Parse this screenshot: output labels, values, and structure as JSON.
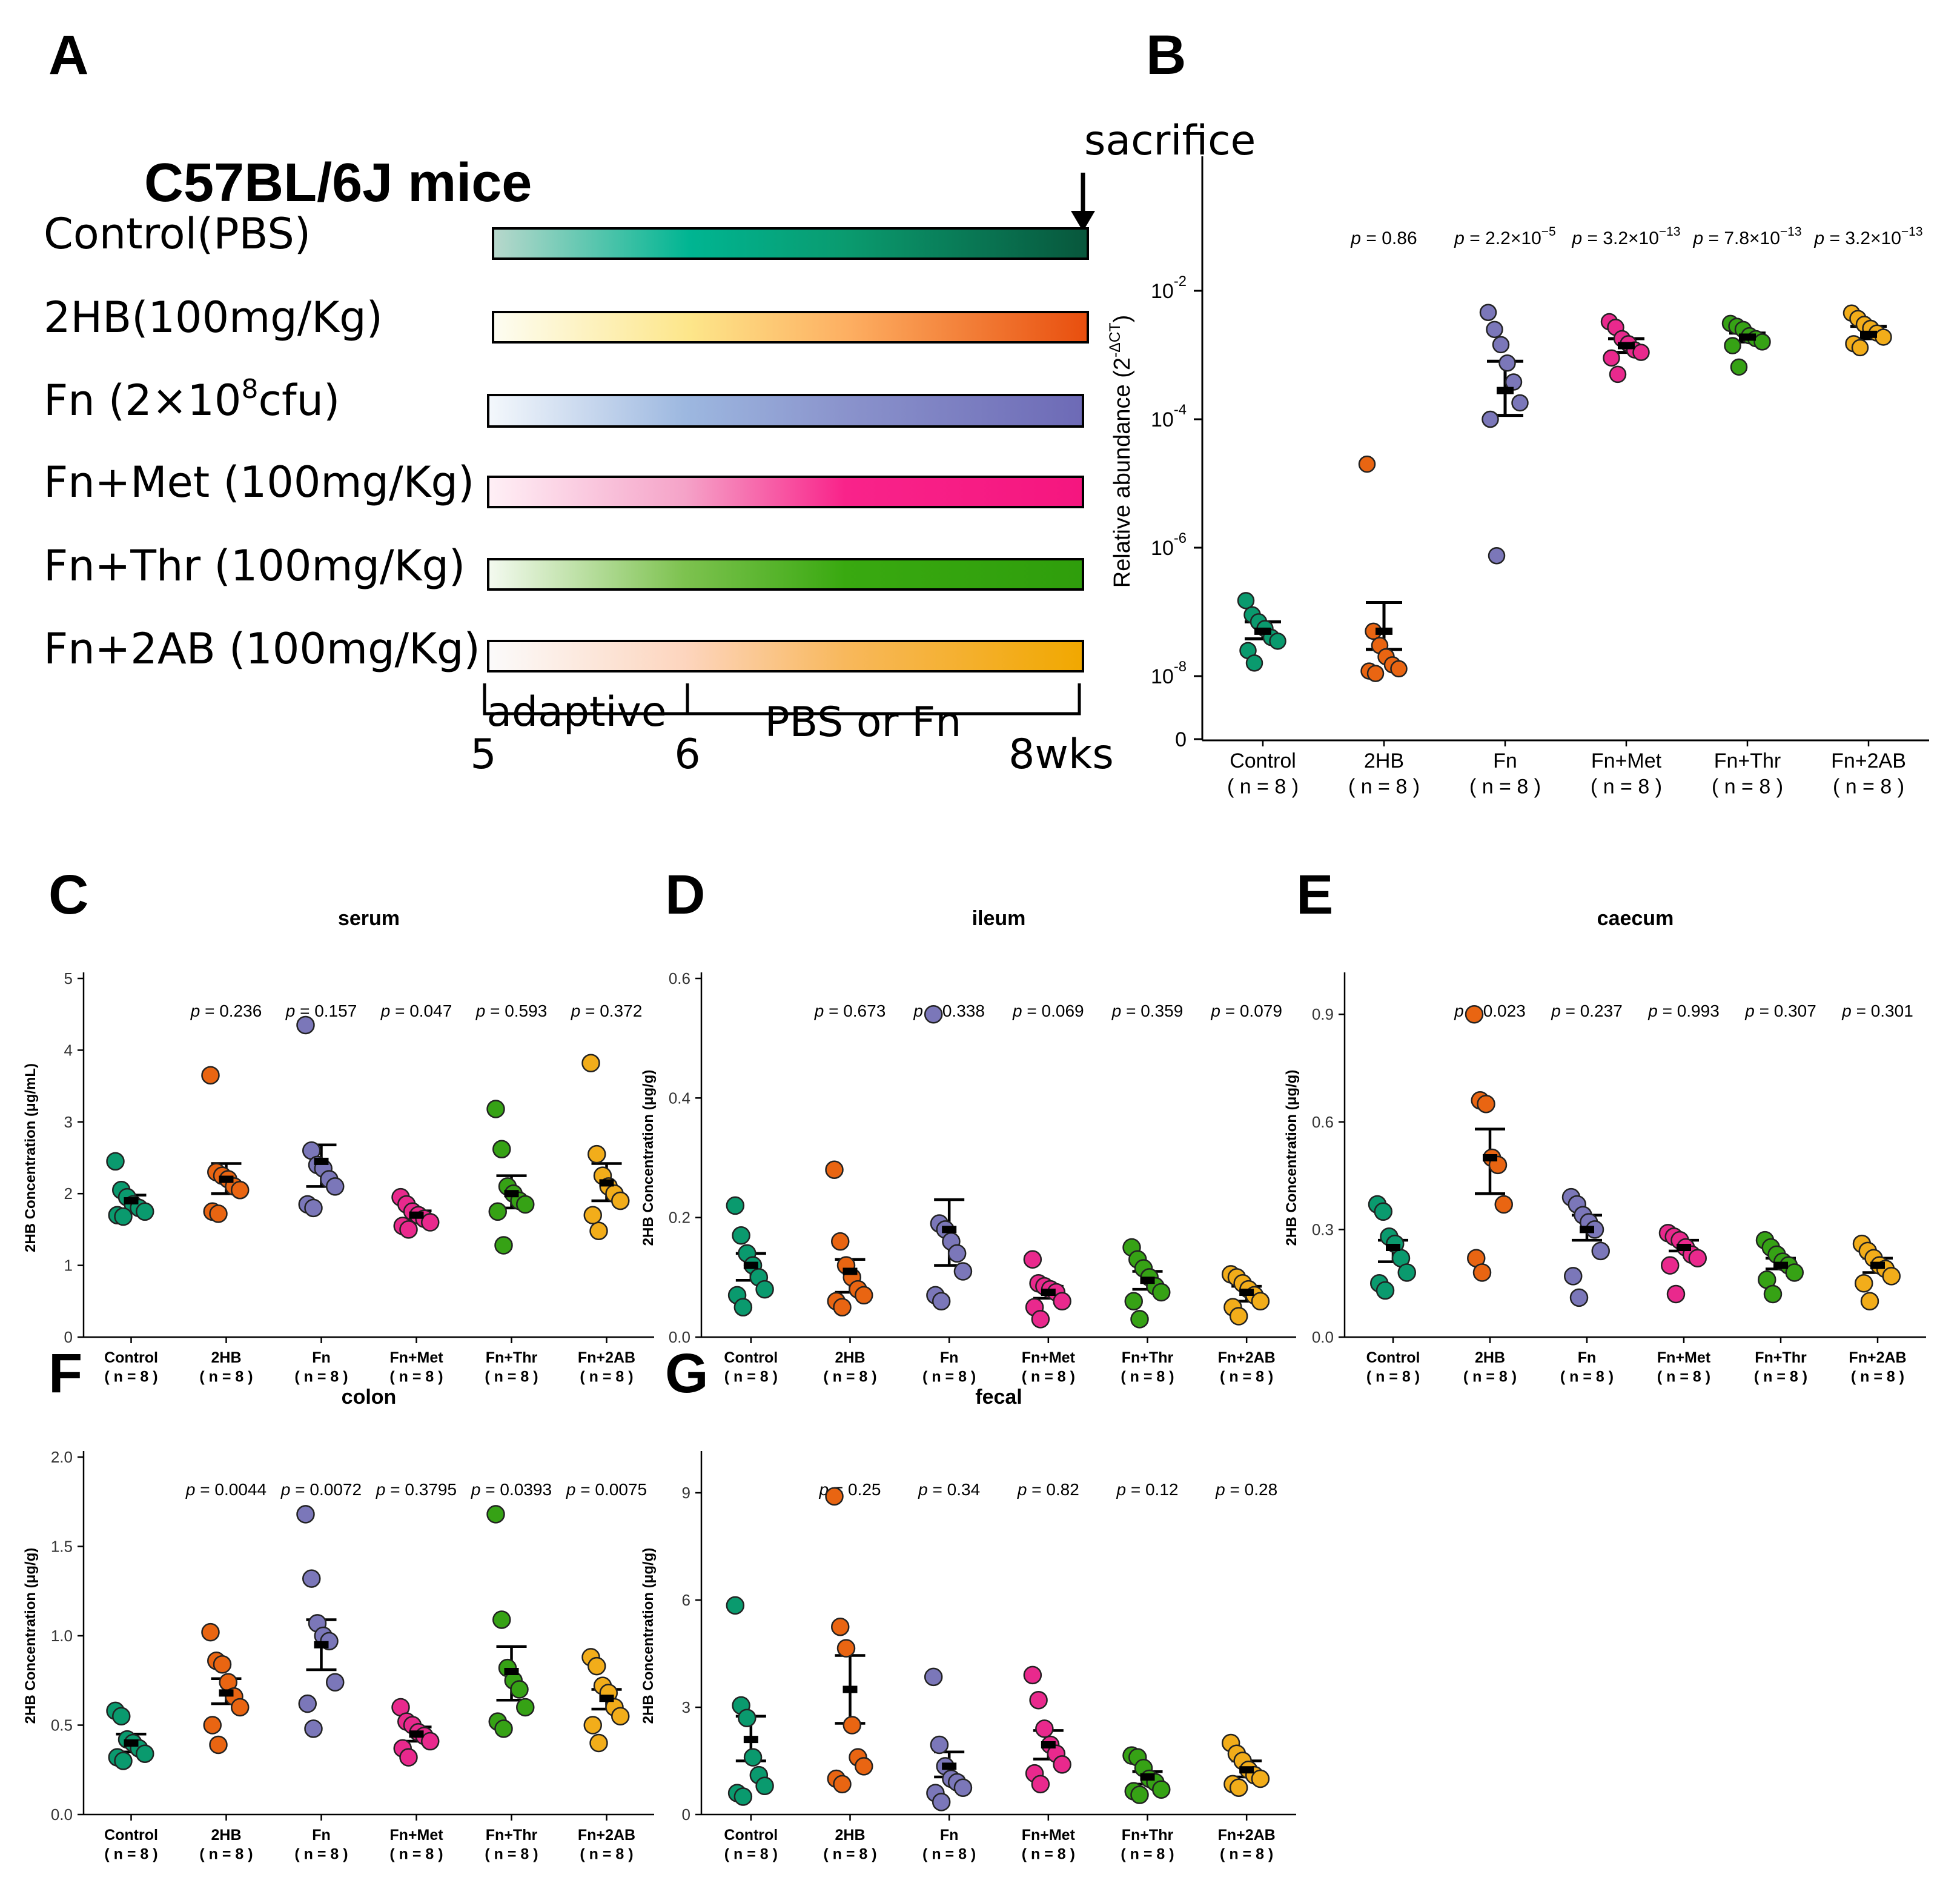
{
  "figure": {
    "panels": [
      "A",
      "B",
      "C",
      "D",
      "E",
      "F",
      "G"
    ]
  },
  "panel_a": {
    "title": "C57BL/6J mice",
    "sacrifice_label": "sacrifice",
    "groups": [
      {
        "label": "Control(PBS)",
        "colors": [
          "#b8d8cc",
          "#00b592",
          "#0a9a6e",
          "#08573c"
        ]
      },
      {
        "label": "2HB(100mg/Kg)",
        "colors": [
          "#fdfdf2",
          "#fde68a",
          "#fdae61",
          "#e84e0e"
        ]
      },
      {
        "label_main": "Fn (2×10",
        "label_sup": "8",
        "label_tail": "cfu)",
        "colors": [
          "#f4f8fc",
          "#9db8e0",
          "#8a93cc",
          "#6d6ab6"
        ]
      },
      {
        "label": "Fn+Met (100mg/Kg)",
        "colors": [
          "#fff0f6",
          "#f5a3c8",
          "#f9238a",
          "#f5167f"
        ]
      },
      {
        "label": "Fn+Thr (100mg/Kg)",
        "colors": [
          "#f4faf0",
          "#7dc24f",
          "#39a910",
          "#2f9e0c"
        ]
      },
      {
        "label": "Fn+2AB (100mg/Kg)",
        "colors": [
          "#fbfbfb",
          "#fdd5be",
          "#f8b85c",
          "#f1a800"
        ]
      }
    ],
    "timeline": {
      "tick_labels": [
        "5",
        "6",
        "8wks"
      ],
      "phase_labels": [
        "adaptive",
        "PBS or Fn"
      ]
    }
  },
  "colors": [
    "#0a9a6e",
    "#e96512",
    "#7b77b9",
    "#e9298d",
    "#36a215",
    "#f2ad1a"
  ],
  "chart_data": [
    {
      "id": "B",
      "type": "scatter",
      "scale": "log",
      "ylabel_main": "Relative abundance (2",
      "ylabel_sup": "-ΔCT",
      "ylabel_tail": ")",
      "ylim": [
        1e-09,
        1
      ],
      "yticks": [
        {
          "exp": -2,
          "label_base": "10",
          "label_sup": "-2"
        },
        {
          "exp": -4,
          "label_base": "10",
          "label_sup": "-4"
        },
        {
          "exp": -6,
          "label_base": "10",
          "label_sup": "-6"
        },
        {
          "exp": -8,
          "label_base": "10",
          "label_sup": "-8"
        }
      ],
      "zero_label": "0",
      "categories": [
        "Control",
        "2HB",
        "Fn",
        "Fn+Met",
        "Fn+Thr",
        "Fn+2AB"
      ],
      "n_labels": [
        "( n = 8 )",
        "( n = 8 )",
        "( n = 8 )",
        "( n = 8 )",
        "( n = 8 )",
        "( n = 8 )"
      ],
      "pvalues": [
        {
          "pre": "p",
          "main": " = 0.86",
          "sup": ""
        },
        {
          "pre": "p",
          "main": " = 2.2×10",
          "sup": "−5"
        },
        {
          "pre": "p",
          "main": " = 3.2×10",
          "sup": "−13"
        },
        {
          "pre": "p",
          "main": " = 7.8×10",
          "sup": "−13"
        },
        {
          "pre": "p",
          "main": " = 3.2×10",
          "sup": "−13"
        }
      ],
      "series": [
        {
          "points": [
            1.5e-07,
            9e-08,
            7e-08,
            5.5e-08,
            4e-08,
            3.5e-08,
            2.5e-08,
            1.6e-08
          ],
          "mean": 5e-08,
          "upper": 7e-08,
          "lower": 3.8e-08
        },
        {
          "points": [
            2e-05,
            5e-08,
            3e-08,
            2e-08,
            1.5e-08,
            1.3e-08,
            1.2e-08,
            1.1e-08
          ],
          "mean": 5e-08,
          "upper": 1.4e-07,
          "lower": 2.6e-08
        },
        {
          "points": [
            0.0046,
            0.0025,
            0.00145,
            0.00075,
            0.00038,
            0.00018,
            0.0001,
            7.5e-07
          ],
          "mean": 0.00028,
          "upper": 0.0008,
          "lower": 0.000115
        },
        {
          "points": [
            0.0033,
            0.0027,
            0.0018,
            0.0015,
            0.0012,
            0.0011,
            0.0009,
            0.0005
          ],
          "mean": 0.0014,
          "upper": 0.0018,
          "lower": 0.0011
        },
        {
          "points": [
            0.0031,
            0.0028,
            0.0025,
            0.002,
            0.0018,
            0.0016,
            0.0014,
            0.00065
          ],
          "mean": 0.0019,
          "upper": 0.0022,
          "lower": 0.0016
        },
        {
          "points": [
            0.0045,
            0.0037,
            0.003,
            0.0026,
            0.0022,
            0.0019,
            0.0015,
            0.0013
          ],
          "mean": 0.0021,
          "upper": 0.0028,
          "lower": 0.0018
        }
      ]
    },
    {
      "id": "C",
      "type": "scatter",
      "title": "serum",
      "ylabel": "2HB Concentration (μg/mL)",
      "ylim": [
        0,
        5
      ],
      "yticks": [
        0,
        1,
        2,
        3,
        4,
        5
      ],
      "categories": [
        "Control",
        "2HB",
        "Fn",
        "Fn+Met",
        "Fn+Thr",
        "Fn+2AB"
      ],
      "n_labels": [
        "( n = 8 )",
        "( n = 8 )",
        "( n = 8 )",
        "( n = 8 )",
        "( n = 8 )",
        "( n = 8 )"
      ],
      "pvalues": [
        {
          "pre": "p",
          "main": " = 0.236"
        },
        {
          "pre": "p",
          "main": " = 0.157"
        },
        {
          "pre": "p",
          "main": " = 0.047"
        },
        {
          "pre": "p",
          "main": " = 0.593"
        },
        {
          "pre": "p",
          "main": " = 0.372"
        }
      ],
      "series": [
        {
          "points": [
            2.45,
            2.05,
            1.95,
            1.85,
            1.8,
            1.75,
            1.7,
            1.68
          ],
          "mean": 1.9,
          "upper": 1.98,
          "lower": 1.75
        },
        {
          "points": [
            3.65,
            2.3,
            2.25,
            2.2,
            2.1,
            2.05,
            1.75,
            1.72
          ],
          "mean": 2.2,
          "upper": 2.42,
          "lower": 2.0
        },
        {
          "points": [
            4.35,
            2.6,
            2.4,
            2.35,
            2.2,
            2.1,
            1.85,
            1.8
          ],
          "mean": 2.45,
          "upper": 2.68,
          "lower": 2.1
        },
        {
          "points": [
            1.95,
            1.85,
            1.75,
            1.7,
            1.65,
            1.6,
            1.55,
            1.5
          ],
          "mean": 1.7,
          "upper": 1.76,
          "lower": 1.63
        },
        {
          "points": [
            3.18,
            2.62,
            2.1,
            2.0,
            1.9,
            1.85,
            1.75,
            1.28
          ],
          "mean": 2.0,
          "upper": 2.25,
          "lower": 1.8
        },
        {
          "points": [
            3.82,
            2.55,
            2.25,
            2.1,
            2.0,
            1.9,
            1.7,
            1.48
          ],
          "mean": 2.15,
          "upper": 2.42,
          "lower": 1.9
        }
      ]
    },
    {
      "id": "D",
      "type": "scatter",
      "title": "ileum",
      "ylabel": "2HB Concentration (μg/g)",
      "ylim": [
        0,
        0.6
      ],
      "yticks": [
        0.0,
        0.2,
        0.4,
        0.6
      ],
      "tick_labels": [
        "0.0",
        "0.2",
        "0.4",
        "0.6"
      ],
      "categories": [
        "Control",
        "2HB",
        "Fn",
        "Fn+Met",
        "Fn+Thr",
        "Fn+2AB"
      ],
      "n_labels": [
        "( n = 8 )",
        "( n = 8 )",
        "( n = 8 )",
        "( n = 8 )",
        "( n = 8 )",
        "( n = 8 )"
      ],
      "pvalues": [
        {
          "pre": "p",
          "main": " = 0.673"
        },
        {
          "pre": "p",
          "main": " = 0.338"
        },
        {
          "pre": "p",
          "main": " = 0.069"
        },
        {
          "pre": "p",
          "main": " = 0.359"
        },
        {
          "pre": "p",
          "main": " = 0.079"
        }
      ],
      "series": [
        {
          "points": [
            0.22,
            0.17,
            0.14,
            0.12,
            0.1,
            0.08,
            0.07,
            0.05
          ],
          "mean": 0.12,
          "upper": 0.14,
          "lower": 0.095
        },
        {
          "points": [
            0.28,
            0.16,
            0.12,
            0.1,
            0.08,
            0.07,
            0.06,
            0.05
          ],
          "mean": 0.11,
          "upper": 0.13,
          "lower": 0.075
        },
        {
          "points": [
            0.54,
            0.19,
            0.18,
            0.16,
            0.14,
            0.11,
            0.07,
            0.06
          ],
          "mean": 0.18,
          "upper": 0.23,
          "lower": 0.12
        },
        {
          "points": [
            0.13,
            0.09,
            0.085,
            0.08,
            0.075,
            0.06,
            0.05,
            0.03
          ],
          "mean": 0.075,
          "upper": 0.085,
          "lower": 0.065
        },
        {
          "points": [
            0.15,
            0.13,
            0.115,
            0.1,
            0.085,
            0.075,
            0.06,
            0.03
          ],
          "mean": 0.095,
          "upper": 0.11,
          "lower": 0.08
        },
        {
          "points": [
            0.105,
            0.1,
            0.09,
            0.08,
            0.07,
            0.06,
            0.05,
            0.035
          ],
          "mean": 0.075,
          "upper": 0.085,
          "lower": 0.06
        }
      ]
    },
    {
      "id": "E",
      "type": "scatter",
      "title": "caecum",
      "ylabel": "2HB Concentration (μg/g)",
      "ylim": [
        0,
        1.0
      ],
      "yticks": [
        0.0,
        0.3,
        0.6,
        0.9
      ],
      "tick_labels": [
        "0.0",
        "0.3",
        "0.6",
        "0.9"
      ],
      "categories": [
        "Control",
        "2HB",
        "Fn",
        "Fn+Met",
        "Fn+Thr",
        "Fn+2AB"
      ],
      "n_labels": [
        "( n = 8 )",
        "( n = 8 )",
        "( n = 8 )",
        "( n = 8 )",
        "( n = 8 )",
        "( n = 8 )"
      ],
      "pvalues": [
        {
          "pre": "p",
          "main": " = 0.023"
        },
        {
          "pre": "p",
          "main": " = 0.237"
        },
        {
          "pre": "p",
          "main": " = 0.993"
        },
        {
          "pre": "p",
          "main": " = 0.307"
        },
        {
          "pre": "p",
          "main": " = 0.301"
        }
      ],
      "series": [
        {
          "points": [
            0.37,
            0.35,
            0.28,
            0.26,
            0.22,
            0.18,
            0.15,
            0.13
          ],
          "mean": 0.25,
          "upper": 0.27,
          "lower": 0.21
        },
        {
          "points": [
            0.9,
            0.66,
            0.65,
            0.5,
            0.48,
            0.37,
            0.22,
            0.18
          ],
          "mean": 0.5,
          "upper": 0.58,
          "lower": 0.4
        },
        {
          "points": [
            0.39,
            0.37,
            0.34,
            0.32,
            0.3,
            0.24,
            0.17,
            0.11
          ],
          "mean": 0.3,
          "upper": 0.34,
          "lower": 0.27
        },
        {
          "points": [
            0.29,
            0.28,
            0.27,
            0.25,
            0.23,
            0.22,
            0.2,
            0.12
          ],
          "mean": 0.25,
          "upper": 0.27,
          "lower": 0.24
        },
        {
          "points": [
            0.27,
            0.25,
            0.23,
            0.21,
            0.2,
            0.18,
            0.16,
            0.12
          ],
          "mean": 0.2,
          "upper": 0.22,
          "lower": 0.19
        },
        {
          "points": [
            0.26,
            0.24,
            0.22,
            0.2,
            0.19,
            0.17,
            0.15,
            0.1
          ],
          "mean": 0.2,
          "upper": 0.22,
          "lower": 0.18
        }
      ]
    },
    {
      "id": "F",
      "type": "scatter",
      "title": "colon",
      "ylabel": "2HB Concentration (μg/g)",
      "ylim": [
        0,
        2.0
      ],
      "yticks": [
        0.0,
        0.5,
        1.0,
        1.5,
        2.0
      ],
      "tick_labels": [
        "0.0",
        "0.5",
        "1.0",
        "1.5",
        "2.0"
      ],
      "categories": [
        "Control",
        "2HB",
        "Fn",
        "Fn+Met",
        "Fn+Thr",
        "Fn+2AB"
      ],
      "n_labels": [
        "( n = 8 )",
        "( n = 8 )",
        "( n = 8 )",
        "( n = 8 )",
        "( n = 8 )",
        "( n = 8 )"
      ],
      "pvalues": [
        {
          "pre": "p",
          "main": " = 0.0044"
        },
        {
          "pre": "p",
          "main": " = 0.0072"
        },
        {
          "pre": "p",
          "main": " = 0.3795"
        },
        {
          "pre": "p",
          "main": " = 0.0393"
        },
        {
          "pre": "p",
          "main": " = 0.0075"
        }
      ],
      "series": [
        {
          "points": [
            0.58,
            0.55,
            0.42,
            0.4,
            0.37,
            0.34,
            0.32,
            0.3
          ],
          "mean": 0.4,
          "upper": 0.45,
          "lower": 0.35
        },
        {
          "points": [
            1.02,
            0.86,
            0.84,
            0.74,
            0.66,
            0.6,
            0.5,
            0.39
          ],
          "mean": 0.68,
          "upper": 0.76,
          "lower": 0.62
        },
        {
          "points": [
            1.68,
            1.32,
            1.07,
            1.0,
            0.97,
            0.74,
            0.62,
            0.48
          ],
          "mean": 0.95,
          "upper": 1.09,
          "lower": 0.81
        },
        {
          "points": [
            0.6,
            0.52,
            0.5,
            0.46,
            0.44,
            0.41,
            0.37,
            0.32
          ],
          "mean": 0.45,
          "upper": 0.49,
          "lower": 0.41
        },
        {
          "points": [
            1.68,
            1.09,
            0.82,
            0.75,
            0.7,
            0.6,
            0.52,
            0.48
          ],
          "mean": 0.8,
          "upper": 0.94,
          "lower": 0.64
        },
        {
          "points": [
            0.88,
            0.83,
            0.72,
            0.68,
            0.6,
            0.55,
            0.5,
            0.4
          ],
          "mean": 0.65,
          "upper": 0.7,
          "lower": 0.59
        }
      ]
    },
    {
      "id": "G",
      "type": "scatter",
      "title": "fecal",
      "ylabel": "2HB Concentration (μg/g)",
      "ylim": [
        0,
        10
      ],
      "yticks": [
        0,
        3,
        6,
        9
      ],
      "tick_labels": [
        "0",
        "3",
        "6",
        "9"
      ],
      "categories": [
        "Control",
        "2HB",
        "Fn",
        "Fn+Met",
        "Fn+Thr",
        "Fn+2AB"
      ],
      "n_labels": [
        "( n = 8 )",
        "( n = 8 )",
        "( n = 8 )",
        "( n = 8 )",
        "( n = 8 )",
        "( n = 8 )"
      ],
      "pvalues": [
        {
          "pre": "p",
          "main": " = 0.25"
        },
        {
          "pre": "p",
          "main": " = 0.34"
        },
        {
          "pre": "p",
          "main": " = 0.82"
        },
        {
          "pre": "p",
          "main": " = 0.12"
        },
        {
          "pre": "p",
          "main": " = 0.28"
        }
      ],
      "series": [
        {
          "points": [
            5.85,
            3.05,
            2.7,
            1.6,
            1.1,
            0.8,
            0.6,
            0.5
          ],
          "mean": 2.1,
          "upper": 2.75,
          "lower": 1.5
        },
        {
          "points": [
            8.9,
            5.25,
            4.65,
            2.5,
            1.6,
            1.35,
            1.0,
            0.85
          ],
          "mean": 3.5,
          "upper": 4.45,
          "lower": 2.55
        },
        {
          "points": [
            3.85,
            1.95,
            1.35,
            1.0,
            0.9,
            0.75,
            0.6,
            0.35
          ],
          "mean": 1.35,
          "upper": 1.75,
          "lower": 1.05
        },
        {
          "points": [
            3.9,
            3.2,
            2.4,
            1.95,
            1.7,
            1.4,
            1.15,
            0.85
          ],
          "mean": 1.95,
          "upper": 2.35,
          "lower": 1.55
        },
        {
          "points": [
            1.65,
            1.6,
            1.3,
            1.0,
            0.9,
            0.7,
            0.65,
            0.55
          ],
          "mean": 1.05,
          "upper": 1.2,
          "lower": 0.85
        },
        {
          "points": [
            2.0,
            1.7,
            1.5,
            1.25,
            1.1,
            1.0,
            0.85,
            0.75
          ],
          "mean": 1.25,
          "upper": 1.5,
          "lower": 1.05
        }
      ]
    }
  ]
}
